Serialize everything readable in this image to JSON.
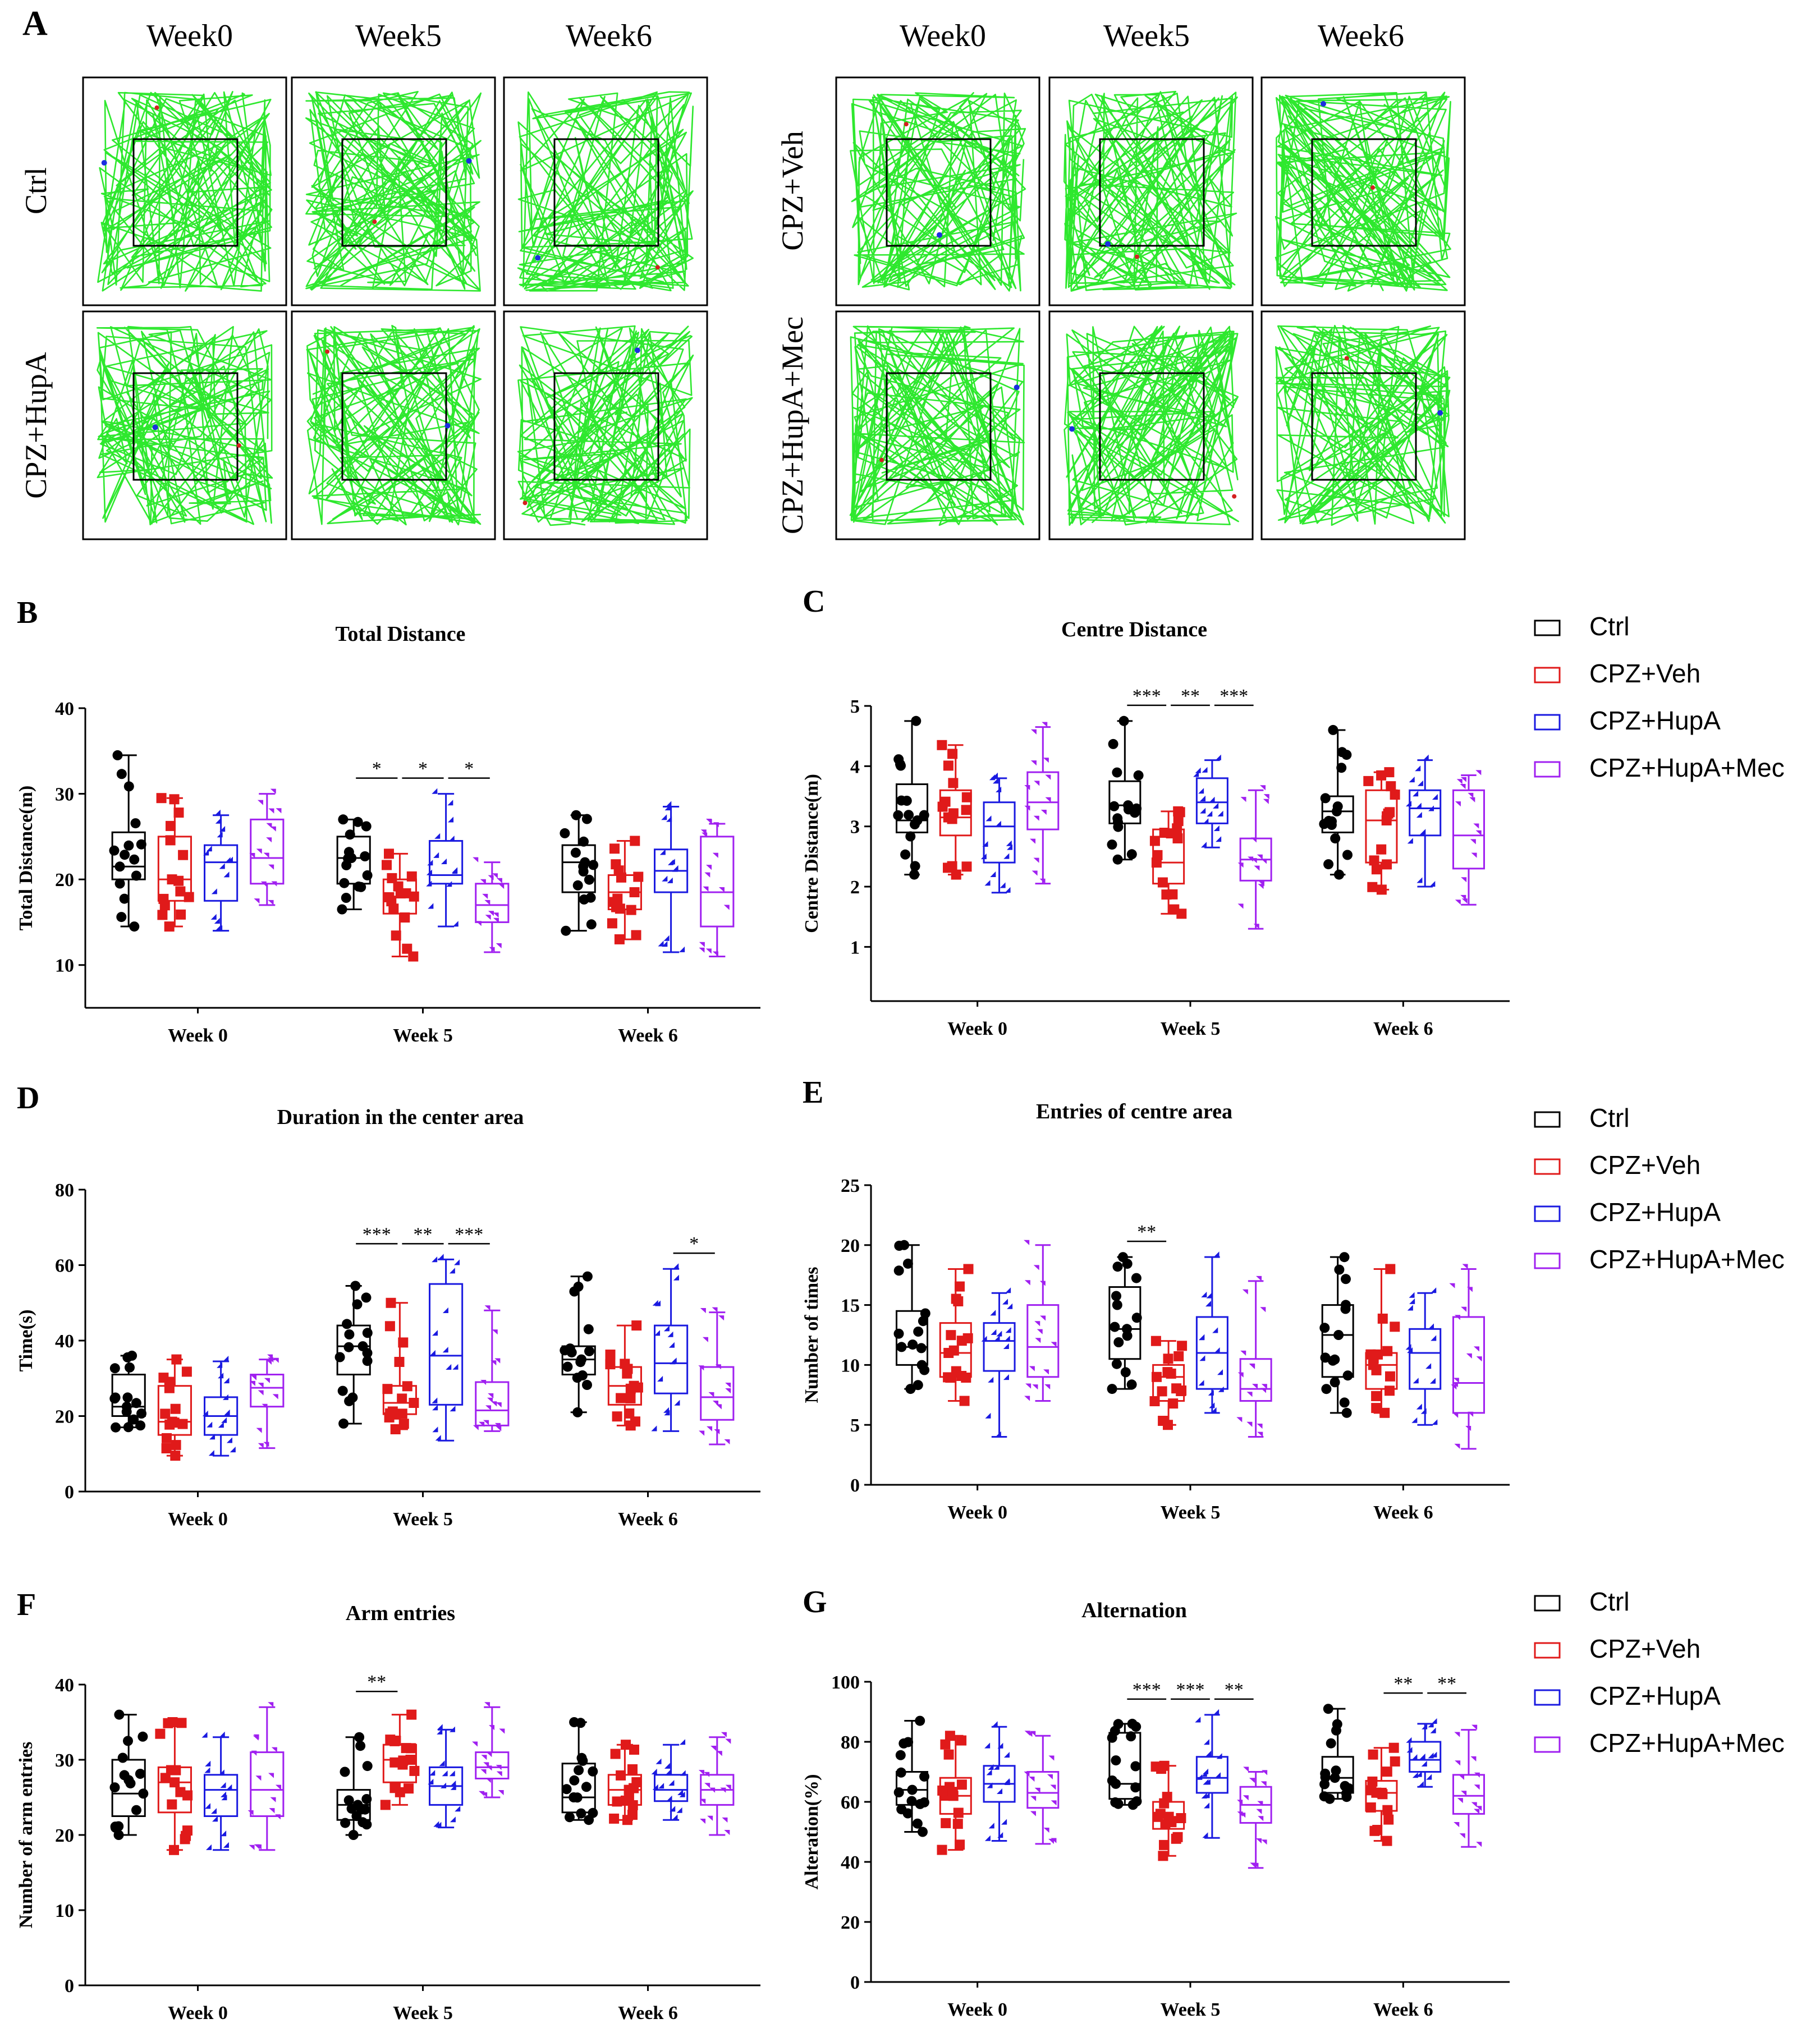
{
  "panel_a": {
    "letter": "A",
    "week_labels": [
      "Week0",
      "Week5",
      "Week6"
    ],
    "row_labels_left": [
      "Ctrl",
      "CPZ+HupA"
    ],
    "row_labels_right": [
      "CPZ+Veh",
      "CPZ+HupA+Mec"
    ],
    "track_color": "#2ee82e",
    "start_dot_color": "#1b2fe0",
    "end_dot_color": "#d42020"
  },
  "groups": [
    {
      "name": "Ctrl",
      "color": "#000000",
      "marker": "circle"
    },
    {
      "name": "CPZ+Veh",
      "color": "#e01a1a",
      "marker": "square"
    },
    {
      "name": "CPZ+HupA",
      "color": "#1a1ae0",
      "marker": "triangle"
    },
    {
      "name": "CPZ+HupA+Mec",
      "color": "#a020f0",
      "marker": "triangle-down"
    }
  ],
  "legends": [
    {
      "items": [
        "Ctrl",
        "CPZ+Veh",
        "CPZ+HupA",
        "CPZ+HupA+Mec"
      ]
    },
    {
      "items": [
        "Ctrl",
        "CPZ+Veh",
        "CPZ+HupA",
        "CPZ+HupA+Mec"
      ]
    },
    {
      "items": [
        "Ctrl",
        "CPZ+Veh",
        "CPZ+HupA",
        "CPZ+HupA+Mec"
      ]
    }
  ],
  "chart_data": [
    {
      "letter": "B",
      "type": "box",
      "title": "Total Distance",
      "ylabel": "Total Distance(m)",
      "categories": [
        "Week 0",
        "Week 5",
        "Week 6"
      ],
      "ylim": [
        5,
        40
      ],
      "yticks": [
        "10",
        "20",
        "30",
        "40"
      ],
      "ytick_values": [
        10,
        20,
        30,
        40
      ],
      "series": [
        {
          "name": "Ctrl",
          "boxes": [
            [
              14.5,
              20,
              21.5,
              25.5,
              34.5
            ],
            [
              16.5,
              19.5,
              22.5,
              25,
              27
            ],
            [
              14,
              18.5,
              22,
              24,
              27.5
            ]
          ]
        },
        {
          "name": "CPZ+Veh",
          "boxes": [
            [
              14.5,
              17.5,
              20,
              25,
              29.5
            ],
            [
              11,
              16,
              18,
              20,
              23
            ],
            [
              13,
              16.5,
              18.5,
              20.5,
              24.5
            ]
          ]
        },
        {
          "name": "CPZ+HupA",
          "boxes": [
            [
              14,
              17.5,
              22,
              24,
              27.5
            ],
            [
              14.5,
              19.5,
              20.5,
              24.5,
              30
            ],
            [
              11.5,
              18.5,
              21,
              23.5,
              28.5
            ]
          ]
        },
        {
          "name": "CPZ+HupA+Mec",
          "boxes": [
            [
              17,
              19.5,
              22.5,
              27,
              30
            ],
            [
              11.5,
              15,
              17,
              19.5,
              22
            ],
            [
              11,
              14.5,
              18.5,
              25,
              26.5
            ]
          ]
        }
      ],
      "significance": [
        {
          "week": 1,
          "from": 0,
          "to": 1,
          "label": "*"
        },
        {
          "week": 1,
          "from": 1,
          "to": 2,
          "label": "*"
        },
        {
          "week": 1,
          "from": 2,
          "to": 3,
          "label": "*"
        }
      ]
    },
    {
      "letter": "C",
      "type": "box",
      "title": "Centre Distance",
      "ylabel": "Centre Distance(m)",
      "categories": [
        "Week 0",
        "Week 5",
        "Week 6"
      ],
      "ylim": [
        0.1,
        5
      ],
      "yticks": [
        "1",
        "2",
        "3",
        "4",
        "5"
      ],
      "ytick_values": [
        1,
        2,
        3,
        4,
        5
      ],
      "series": [
        {
          "name": "Ctrl",
          "boxes": [
            [
              2.2,
              2.9,
              3.1,
              3.7,
              4.75
            ],
            [
              2.45,
              3.05,
              3.35,
              3.75,
              4.75
            ],
            [
              2.2,
              2.9,
              3.25,
              3.5,
              4.6
            ]
          ]
        },
        {
          "name": "CPZ+Veh",
          "boxes": [
            [
              2.2,
              2.85,
              3.15,
              3.6,
              4.35
            ],
            [
              1.55,
              2.05,
              2.4,
              2.95,
              3.25
            ],
            [
              1.95,
              2.4,
              3.1,
              3.6,
              3.9
            ]
          ]
        },
        {
          "name": "CPZ+HupA",
          "boxes": [
            [
              1.9,
              2.4,
              3.0,
              3.4,
              3.8
            ],
            [
              2.65,
              3.05,
              3.4,
              3.8,
              4.1
            ],
            [
              2.0,
              2.85,
              3.3,
              3.6,
              4.1
            ]
          ]
        },
        {
          "name": "CPZ+HupA+Mec",
          "boxes": [
            [
              2.05,
              2.95,
              3.4,
              3.9,
              4.65
            ],
            [
              1.3,
              2.1,
              2.45,
              2.8,
              3.6
            ],
            [
              1.7,
              2.3,
              2.85,
              3.6,
              3.85
            ]
          ]
        }
      ],
      "significance": [
        {
          "week": 1,
          "from": 0,
          "to": 1,
          "label": "***"
        },
        {
          "week": 1,
          "from": 1,
          "to": 2,
          "label": "**"
        },
        {
          "week": 1,
          "from": 2,
          "to": 3,
          "label": "***"
        }
      ]
    },
    {
      "letter": "D",
      "type": "box",
      "title": "Duration in the center area",
      "ylabel": "Time(s)",
      "categories": [
        "Week 0",
        "Week 5",
        "Week 6"
      ],
      "ylim": [
        0,
        80
      ],
      "yticks": [
        "0",
        "20",
        "40",
        "60",
        "80"
      ],
      "ytick_values": [
        0,
        20,
        40,
        60,
        80
      ],
      "series": [
        {
          "name": "Ctrl",
          "boxes": [
            [
              17,
              20,
              22.5,
              31,
              36
            ],
            [
              18,
              31,
              38.5,
              44,
              54.5
            ],
            [
              21,
              31,
              35,
              38.5,
              57
            ]
          ]
        },
        {
          "name": "CPZ+Veh",
          "boxes": [
            [
              9.5,
              15,
              18.5,
              28,
              35
            ],
            [
              16.5,
              20.5,
              23.5,
              28,
              50
            ],
            [
              17.5,
              23,
              28,
              33,
              44
            ]
          ]
        },
        {
          "name": "CPZ+HupA",
          "boxes": [
            [
              9.5,
              15,
              20,
              25,
              34.5
            ],
            [
              13.5,
              23,
              36,
              55,
              61.5
            ],
            [
              16,
              26,
              34,
              44,
              59
            ]
          ]
        },
        {
          "name": "CPZ+HupA+Mec",
          "boxes": [
            [
              11.5,
              22.5,
              27.5,
              31,
              35
            ],
            [
              16,
              17.5,
              21.5,
              29,
              48
            ],
            [
              12.5,
              19,
              25,
              33,
              47.5
            ]
          ]
        }
      ],
      "significance": [
        {
          "week": 1,
          "from": 0,
          "to": 1,
          "label": "***"
        },
        {
          "week": 1,
          "from": 1,
          "to": 2,
          "label": "**"
        },
        {
          "week": 1,
          "from": 2,
          "to": 3,
          "label": "***"
        },
        {
          "week": 2,
          "from": 2,
          "to": 3,
          "label": "*"
        }
      ]
    },
    {
      "letter": "E",
      "type": "box",
      "title": "Entries of centre area",
      "ylabel": "Number of times",
      "categories": [
        "Week 0",
        "Week 5",
        "Week 6"
      ],
      "ylim": [
        0,
        25
      ],
      "yticks": [
        "0",
        "5",
        "10",
        "15",
        "20",
        "25"
      ],
      "ytick_values": [
        0,
        5,
        10,
        15,
        20,
        25
      ],
      "series": [
        {
          "name": "Ctrl",
          "boxes": [
            [
              8,
              10,
              11.5,
              14.5,
              20
            ],
            [
              8,
              10.5,
              13,
              16.5,
              19
            ],
            [
              6,
              9,
              12.5,
              15,
              19
            ]
          ]
        },
        {
          "name": "CPZ+Veh",
          "boxes": [
            [
              7,
              9,
              11,
              13.5,
              18
            ],
            [
              5,
              7,
              9,
              10,
              12
            ],
            [
              6,
              8,
              10,
              11,
              18
            ]
          ]
        },
        {
          "name": "CPZ+HupA",
          "boxes": [
            [
              4,
              9.5,
              12,
              13.5,
              16
            ],
            [
              6,
              8,
              11,
              14,
              19
            ],
            [
              5,
              8,
              11,
              13,
              16
            ]
          ]
        },
        {
          "name": "CPZ+HupA+Mec",
          "boxes": [
            [
              7,
              9,
              11.5,
              15,
              20
            ],
            [
              4,
              7,
              8,
              10.5,
              17
            ],
            [
              3,
              6,
              8.5,
              14,
              18
            ]
          ]
        }
      ],
      "significance": [
        {
          "week": 1,
          "from": 0,
          "to": 1,
          "label": "**"
        }
      ]
    },
    {
      "letter": "F",
      "type": "box",
      "title": "Arm entries",
      "ylabel": "Number of arm entries",
      "categories": [
        "Week 0",
        "Week 5",
        "Week 6"
      ],
      "ylim": [
        0,
        40
      ],
      "yticks": [
        "0",
        "10",
        "20",
        "30",
        "40"
      ],
      "ytick_values": [
        0,
        10,
        20,
        30,
        40
      ],
      "series": [
        {
          "name": "Ctrl",
          "boxes": [
            [
              20,
              22.5,
              25.5,
              30,
              36
            ],
            [
              20,
              22,
              24,
              26,
              33
            ],
            [
              22,
              23,
              25,
              29.5,
              35
            ]
          ]
        },
        {
          "name": "CPZ+Veh",
          "boxes": [
            [
              18,
              23,
              27,
              29,
              35
            ],
            [
              24,
              27,
              30,
              32,
              36
            ],
            [
              22,
              24,
              26,
              28,
              32
            ]
          ]
        },
        {
          "name": "CPZ+HupA",
          "boxes": [
            [
              18,
              22.5,
              26,
              28,
              33
            ],
            [
              21,
              24,
              26.5,
              29,
              34
            ],
            [
              22,
              24.5,
              26,
              28,
              32
            ]
          ]
        },
        {
          "name": "CPZ+HupA+Mec",
          "boxes": [
            [
              18,
              22.5,
              26,
              31,
              37
            ],
            [
              25,
              27.5,
              29,
              31,
              37
            ],
            [
              20,
              24,
              26,
              28,
              33
            ]
          ]
        }
      ],
      "significance": [
        {
          "week": 1,
          "from": 0,
          "to": 1,
          "label": "**"
        }
      ]
    },
    {
      "letter": "G",
      "type": "box",
      "title": "Alternation",
      "ylabel": "Alteration(%)",
      "categories": [
        "Week 0",
        "Week 5",
        "Week 6"
      ],
      "ylim": [
        0,
        100
      ],
      "yticks": [
        "0",
        "20",
        "40",
        "60",
        "80",
        "100"
      ],
      "ytick_values": [
        0,
        20,
        40,
        60,
        80,
        100
      ],
      "series": [
        {
          "name": "Ctrl",
          "boxes": [
            [
              50,
              59,
              64,
              70,
              87
            ],
            [
              59,
              61,
              66,
              83,
              86
            ],
            [
              61,
              63,
              68,
              75,
              91
            ]
          ]
        },
        {
          "name": "CPZ+Veh",
          "boxes": [
            [
              44,
              56,
              62,
              68,
              82
            ],
            [
              42,
              51,
              55,
              60,
              72
            ],
            [
              47,
              57,
              63,
              67,
              78
            ]
          ]
        },
        {
          "name": "CPZ+HupA",
          "boxes": [
            [
              47,
              60,
              66,
              72,
              85
            ],
            [
              48,
              63,
              68,
              75,
              89
            ],
            [
              65,
              70,
              74,
              80,
              86
            ]
          ]
        },
        {
          "name": "CPZ+HupA+Mec",
          "boxes": [
            [
              46,
              58,
              63,
              70,
              82
            ],
            [
              38,
              53,
              59,
              65,
              70
            ],
            [
              45,
              56,
              62,
              69,
              84
            ]
          ]
        }
      ],
      "significance": [
        {
          "week": 1,
          "from": 0,
          "to": 1,
          "label": "***"
        },
        {
          "week": 1,
          "from": 1,
          "to": 2,
          "label": "***"
        },
        {
          "week": 1,
          "from": 2,
          "to": 3,
          "label": "**"
        },
        {
          "week": 2,
          "from": 1,
          "to": 2,
          "label": "**"
        },
        {
          "week": 2,
          "from": 2,
          "to": 3,
          "label": "**"
        }
      ]
    }
  ]
}
